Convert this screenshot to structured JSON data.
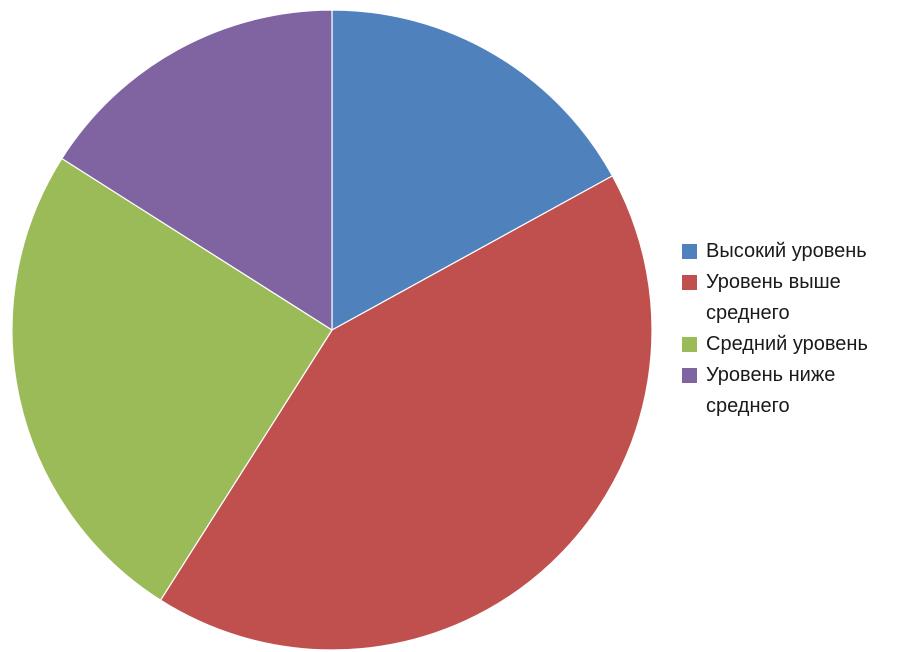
{
  "chart_data": {
    "type": "pie",
    "categories": [
      "Высокий уровень",
      "Уровень выше среднего",
      "Средний уровень",
      "Уровень ниже среднего"
    ],
    "values": [
      17,
      42,
      25,
      16
    ],
    "colors": [
      "#4f81bd",
      "#c0504d",
      "#9bbb59",
      "#8064a2"
    ],
    "legend_position": "right",
    "start_angle_deg": 0,
    "direction": "clockwise"
  },
  "legend": {
    "items": [
      {
        "label": "Высокий уровень",
        "color": "#4f81bd"
      },
      {
        "label": "Уровень выше среднего",
        "color": "#c0504d"
      },
      {
        "label": "Средний уровень",
        "color": "#9bbb59"
      },
      {
        "label": "Уровень ниже среднего",
        "color": "#8064a2"
      }
    ]
  }
}
